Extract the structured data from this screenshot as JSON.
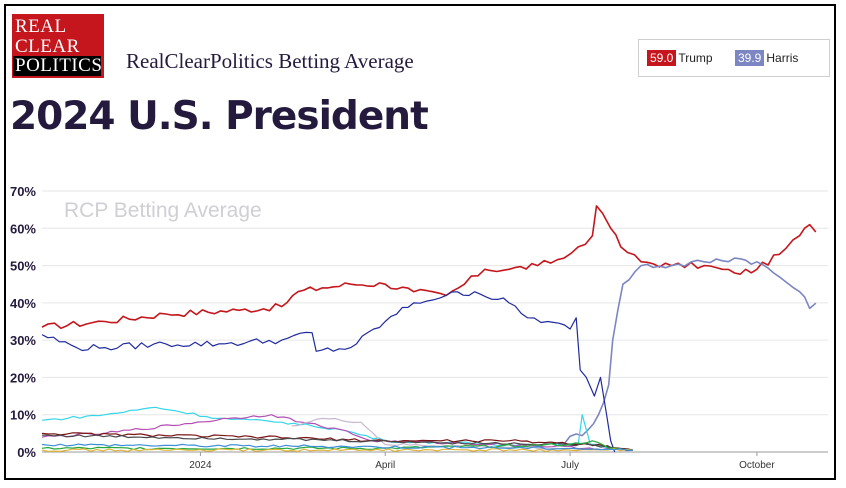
{
  "logo": {
    "line1": "REAL",
    "line2": "CLEAR",
    "line3": "POLITICS"
  },
  "subtitle": "RealClearPolitics Betting Average",
  "title": "2024 U.S. President",
  "legend": [
    {
      "value": "59.0",
      "name": "Trump",
      "color": "#c4161c"
    },
    {
      "value": "39.9",
      "name": "Harris",
      "color": "#7b86c2"
    }
  ],
  "chart_data": {
    "type": "line",
    "watermark": "RCP Betting Average",
    "ylim": [
      0,
      70
    ],
    "yticks": [
      "0%",
      "10%",
      "20%",
      "30%",
      "40%",
      "50%",
      "60%",
      "70%"
    ],
    "x_range": [
      "2023-10-15",
      "2024-11-05"
    ],
    "xticks": [
      {
        "label": "2024",
        "date": "2024-01-01"
      },
      {
        "label": "April",
        "date": "2024-04-01"
      },
      {
        "label": "July",
        "date": "2024-07-01"
      },
      {
        "label": "October",
        "date": "2024-10-01"
      }
    ],
    "grid": true,
    "series": [
      {
        "name": "Trump",
        "color": "#c4161c",
        "points": [
          [
            "2023-10-15",
            33.5
          ],
          [
            "2023-11-15",
            35
          ],
          [
            "2023-12-15",
            37
          ],
          [
            "2024-01-20",
            38
          ],
          [
            "2024-02-10",
            39
          ],
          [
            "2024-02-18",
            43
          ],
          [
            "2024-03-01",
            44
          ],
          [
            "2024-03-15",
            45
          ],
          [
            "2024-04-01",
            45
          ],
          [
            "2024-04-15",
            43
          ],
          [
            "2024-05-01",
            42
          ],
          [
            "2024-05-10",
            45
          ],
          [
            "2024-05-20",
            49
          ],
          [
            "2024-06-01",
            49
          ],
          [
            "2024-06-15",
            50
          ],
          [
            "2024-06-28",
            52
          ],
          [
            "2024-07-05",
            55
          ],
          [
            "2024-07-12",
            58
          ],
          [
            "2024-07-14",
            66
          ],
          [
            "2024-07-17",
            64
          ],
          [
            "2024-07-21",
            60
          ],
          [
            "2024-07-26",
            55
          ],
          [
            "2024-08-05",
            51
          ],
          [
            "2024-08-20",
            50
          ],
          [
            "2024-09-05",
            50
          ],
          [
            "2024-09-20",
            48
          ],
          [
            "2024-10-01",
            49
          ],
          [
            "2024-10-12",
            53
          ],
          [
            "2024-10-22",
            58
          ],
          [
            "2024-10-27",
            61
          ],
          [
            "2024-10-30",
            59
          ]
        ]
      },
      {
        "name": "Harris",
        "color": "#7b86c2",
        "points": [
          [
            "2024-06-25",
            2
          ],
          [
            "2024-07-10",
            6
          ],
          [
            "2024-07-15",
            10
          ],
          [
            "2024-07-20",
            18
          ],
          [
            "2024-07-22",
            30
          ],
          [
            "2024-07-27",
            45
          ],
          [
            "2024-08-05",
            50
          ],
          [
            "2024-08-20",
            50
          ],
          [
            "2024-09-05",
            51
          ],
          [
            "2024-09-20",
            52
          ],
          [
            "2024-10-01",
            51
          ],
          [
            "2024-10-12",
            47
          ],
          [
            "2024-10-22",
            43
          ],
          [
            "2024-10-27",
            38.5
          ],
          [
            "2024-10-30",
            39.9
          ]
        ]
      },
      {
        "name": "",
        "color": "#1f2aa0",
        "points": [
          [
            "2023-10-15",
            31.5
          ],
          [
            "2023-11-01",
            28
          ],
          [
            "2023-11-15",
            28
          ],
          [
            "2023-12-15",
            29
          ],
          [
            "2024-01-10",
            29
          ],
          [
            "2024-02-10",
            30
          ],
          [
            "2024-02-25",
            32
          ],
          [
            "2024-02-27",
            27
          ],
          [
            "2024-03-15",
            28
          ],
          [
            "2024-04-01",
            35
          ],
          [
            "2024-04-15",
            40
          ],
          [
            "2024-05-01",
            42
          ],
          [
            "2024-05-15",
            43
          ],
          [
            "2024-06-01",
            40
          ],
          [
            "2024-06-10",
            36
          ],
          [
            "2024-06-20",
            35
          ],
          [
            "2024-07-01",
            33
          ],
          [
            "2024-07-04",
            36
          ],
          [
            "2024-07-06",
            22
          ],
          [
            "2024-07-09",
            20
          ],
          [
            "2024-07-13",
            15
          ],
          [
            "2024-07-16",
            20
          ],
          [
            "2024-07-19",
            10
          ],
          [
            "2024-07-21",
            3
          ],
          [
            "2024-07-23",
            0
          ]
        ]
      },
      {
        "name": "",
        "color": "#33d6e8",
        "points": [
          [
            "2023-10-15",
            8.5
          ],
          [
            "2023-11-15",
            10
          ],
          [
            "2023-12-10",
            12
          ],
          [
            "2024-01-10",
            9
          ],
          [
            "2024-02-10",
            8
          ],
          [
            "2024-02-25",
            7
          ],
          [
            "2024-03-10",
            6
          ],
          [
            "2024-04-01",
            3
          ],
          [
            "2024-06-01",
            2
          ],
          [
            "2024-07-05",
            2
          ],
          [
            "2024-07-07",
            10
          ],
          [
            "2024-07-11",
            2
          ],
          [
            "2024-08-01",
            0.5
          ]
        ]
      },
      {
        "name": "",
        "color": "#b44fb5",
        "points": [
          [
            "2023-10-15",
            4
          ],
          [
            "2023-11-15",
            5
          ],
          [
            "2024-01-15",
            9
          ],
          [
            "2024-02-05",
            10
          ],
          [
            "2024-02-20",
            8
          ],
          [
            "2024-03-10",
            6
          ],
          [
            "2024-03-25",
            3
          ],
          [
            "2024-06-01",
            2
          ],
          [
            "2024-08-01",
            0.5
          ]
        ]
      },
      {
        "name": "",
        "color": "#c8b9d0",
        "points": [
          [
            "2024-02-15",
            7
          ],
          [
            "2024-03-01",
            9
          ],
          [
            "2024-03-20",
            8
          ],
          [
            "2024-04-01",
            2
          ],
          [
            "2024-08-01",
            0.5
          ]
        ]
      },
      {
        "name": "",
        "color": "#7a1414",
        "points": [
          [
            "2023-10-15",
            5
          ],
          [
            "2024-02-01",
            4
          ],
          [
            "2024-04-01",
            3
          ],
          [
            "2024-06-01",
            3
          ],
          [
            "2024-07-15",
            2
          ],
          [
            "2024-08-01",
            0.5
          ]
        ]
      },
      {
        "name": "",
        "color": "#4a4a4a",
        "points": [
          [
            "2023-10-15",
            4.5
          ],
          [
            "2024-02-01",
            3.5
          ],
          [
            "2024-05-01",
            2.5
          ],
          [
            "2024-07-10",
            2
          ],
          [
            "2024-08-01",
            0.5
          ]
        ]
      },
      {
        "name": "",
        "color": "#27a83a",
        "points": [
          [
            "2023-10-15",
            1
          ],
          [
            "2024-04-01",
            1
          ],
          [
            "2024-07-01",
            2
          ],
          [
            "2024-07-12",
            3
          ],
          [
            "2024-07-20",
            1
          ],
          [
            "2024-08-01",
            0.5
          ]
        ]
      },
      {
        "name": "",
        "color": "#e0b43c",
        "points": [
          [
            "2023-10-15",
            0.5
          ],
          [
            "2024-03-01",
            0.5
          ],
          [
            "2024-07-01",
            0.5
          ],
          [
            "2024-08-01",
            0.5
          ]
        ]
      },
      {
        "name": "",
        "color": "#3c8fd6",
        "points": [
          [
            "2023-10-15",
            2
          ],
          [
            "2024-03-01",
            1.5
          ],
          [
            "2024-07-01",
            1
          ],
          [
            "2024-08-01",
            0.5
          ]
        ]
      }
    ]
  }
}
